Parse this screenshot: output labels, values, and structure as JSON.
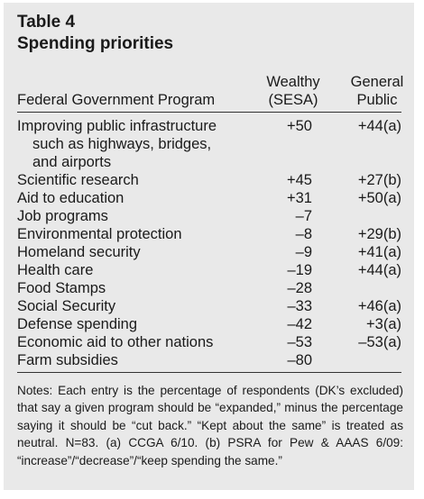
{
  "table": {
    "label": "Table 4",
    "title": "Spending priorities",
    "headers": {
      "program": "Federal Government Program",
      "wealthy_line1": "Wealthy",
      "wealthy_line2": "(SESA)",
      "general_line1": "General",
      "general_line2": "Public"
    },
    "rows": [
      {
        "program": [
          "Improving public infrastructure",
          "such as highways, bridges,",
          "and airports"
        ],
        "wealthy": "+50",
        "general": "+44(a)"
      },
      {
        "program": [
          "Scientific research"
        ],
        "wealthy": "+45",
        "general": "+27(b)"
      },
      {
        "program": [
          "Aid to education"
        ],
        "wealthy": "+31",
        "general": "+50(a)"
      },
      {
        "program": [
          "Job programs"
        ],
        "wealthy": "–7",
        "general": ""
      },
      {
        "program": [
          "Environmental protection"
        ],
        "wealthy": "–8",
        "general": "+29(b)"
      },
      {
        "program": [
          "Homeland security"
        ],
        "wealthy": "–9",
        "general": "+41(a)"
      },
      {
        "program": [
          "Health care"
        ],
        "wealthy": "–19",
        "general": "+44(a)"
      },
      {
        "program": [
          "Food Stamps"
        ],
        "wealthy": "–28",
        "general": ""
      },
      {
        "program": [
          "Social Security"
        ],
        "wealthy": "–33",
        "general": "+46(a)"
      },
      {
        "program": [
          "Defense spending"
        ],
        "wealthy": "–42",
        "general": "+3(a)"
      },
      {
        "program": [
          "Economic aid to other nations"
        ],
        "wealthy": "–53",
        "general": "–53(a)"
      },
      {
        "program": [
          "Farm subsidies"
        ],
        "wealthy": "–80",
        "general": ""
      }
    ],
    "notes": "Notes: Each entry is the percentage of respondents (DK’s excluded) that say a given program should be “expanded,” minus the percentage saying it should be “cut back.” “Kept about the same” is treated as neutral. N=83. (a) CCGA 6/10. (b) PSRA for Pew & AAAS 6/09: “increase”/“decrease”/“keep spending the same.”"
  }
}
